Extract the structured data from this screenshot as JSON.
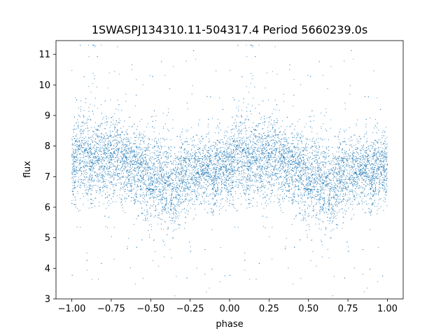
{
  "chart_data": {
    "type": "scatter",
    "title": "1SWASPJ134310.11-504317.4 Period 5660239.0s",
    "xlabel": "phase",
    "ylabel": "flux",
    "xlim": [
      -1.1,
      1.1
    ],
    "ylim": [
      3.0,
      11.45
    ],
    "xticks": [
      -1.0,
      -0.75,
      -0.5,
      -0.25,
      0.0,
      0.25,
      0.5,
      0.75,
      1.0
    ],
    "xtick_labels": [
      "−1.00",
      "−0.75",
      "−0.50",
      "−0.25",
      "0.00",
      "0.25",
      "0.50",
      "0.75",
      "1.00"
    ],
    "yticks": [
      3,
      4,
      5,
      6,
      7,
      8,
      9,
      10,
      11
    ],
    "ytick_labels": [
      "3",
      "4",
      "5",
      "6",
      "7",
      "8",
      "9",
      "10",
      "11"
    ],
    "grid": false,
    "marker_color": "#1f77b4",
    "phase_profile": {
      "phase": [
        0.0,
        0.05,
        0.1,
        0.15,
        0.2,
        0.25,
        0.3,
        0.35,
        0.4,
        0.45,
        0.5,
        0.55,
        0.6,
        0.65,
        0.7,
        0.75,
        0.8,
        0.85,
        0.9,
        0.95,
        1.0
      ],
      "median_flux": [
        7.3,
        7.7,
        7.6,
        7.6,
        7.7,
        7.6,
        7.6,
        7.5,
        7.3,
        7.1,
        7.0,
        6.9,
        6.8,
        6.6,
        7.0,
        7.2,
        7.2,
        7.2,
        7.1,
        7.2,
        7.3
      ],
      "scatter": [
        0.6,
        0.7,
        0.8,
        0.7,
        0.7,
        0.7,
        0.7,
        0.6,
        0.6,
        0.7,
        0.8,
        0.8,
        0.7,
        0.7,
        0.6,
        0.6,
        0.6,
        0.6,
        0.6,
        0.6,
        0.6
      ]
    },
    "points_per_cycle": 5000
  }
}
